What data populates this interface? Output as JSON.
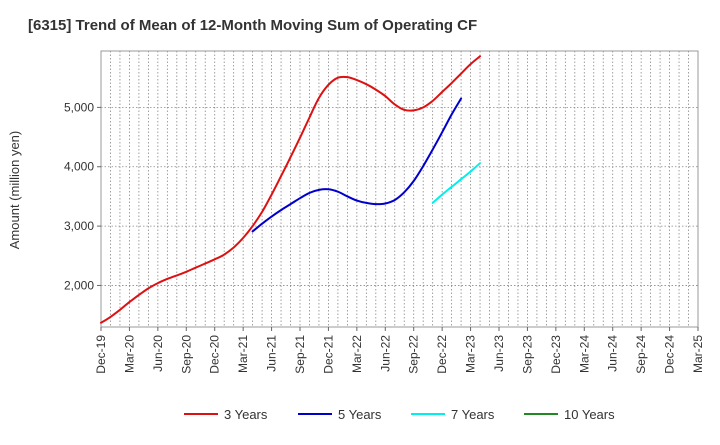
{
  "chart_data": {
    "type": "line",
    "title": "[6315]  Trend of Mean of 12-Month Moving Sum of Operating CF",
    "xlabel": "",
    "ylabel": "Amount (million yen)",
    "ylim": [
      1300,
      5950
    ],
    "yticks": [
      2000,
      3000,
      4000,
      5000
    ],
    "ytick_labels": [
      "2,000",
      "3,000",
      "4,000",
      "5,000"
    ],
    "x_labels": [
      "Dec-19",
      "Mar-20",
      "Jun-20",
      "Sep-20",
      "Dec-20",
      "Mar-21",
      "Jun-21",
      "Sep-21",
      "Dec-21",
      "Mar-22",
      "Jun-22",
      "Sep-22",
      "Dec-22",
      "Mar-23",
      "Jun-23",
      "Sep-23",
      "Dec-23",
      "Mar-24",
      "Jun-24",
      "Sep-24",
      "Dec-24",
      "Mar-25"
    ],
    "grid": true,
    "legend_position": "bottom",
    "series": [
      {
        "name": "3 Years",
        "color": "#dd1111",
        "start_index": 0,
        "values": [
          1370,
          1470,
          1590,
          1720,
          1840,
          1950,
          2040,
          2110,
          2170,
          2230,
          2300,
          2370,
          2440,
          2520,
          2640,
          2800,
          3000,
          3240,
          3530,
          3840,
          4160,
          4490,
          4830,
          5160,
          5380,
          5500,
          5510,
          5460,
          5390,
          5300,
          5190,
          5050,
          4960,
          4950,
          5000,
          5110,
          5260,
          5410,
          5570,
          5730,
          5860
        ]
      },
      {
        "name": "5 Years",
        "color": "#0000cc",
        "start_index": 16,
        "values": [
          2910,
          3040,
          3160,
          3270,
          3370,
          3470,
          3560,
          3610,
          3620,
          3580,
          3500,
          3430,
          3390,
          3370,
          3380,
          3440,
          3570,
          3760,
          4010,
          4290,
          4580,
          4880,
          5150
        ]
      },
      {
        "name": "7 Years",
        "color": "#00eeee",
        "start_index": 35,
        "values": [
          3390,
          3530,
          3660,
          3790,
          3920,
          4060
        ]
      },
      {
        "name": "10 Years",
        "color": "#228822",
        "start_index": 0,
        "values": []
      }
    ]
  }
}
